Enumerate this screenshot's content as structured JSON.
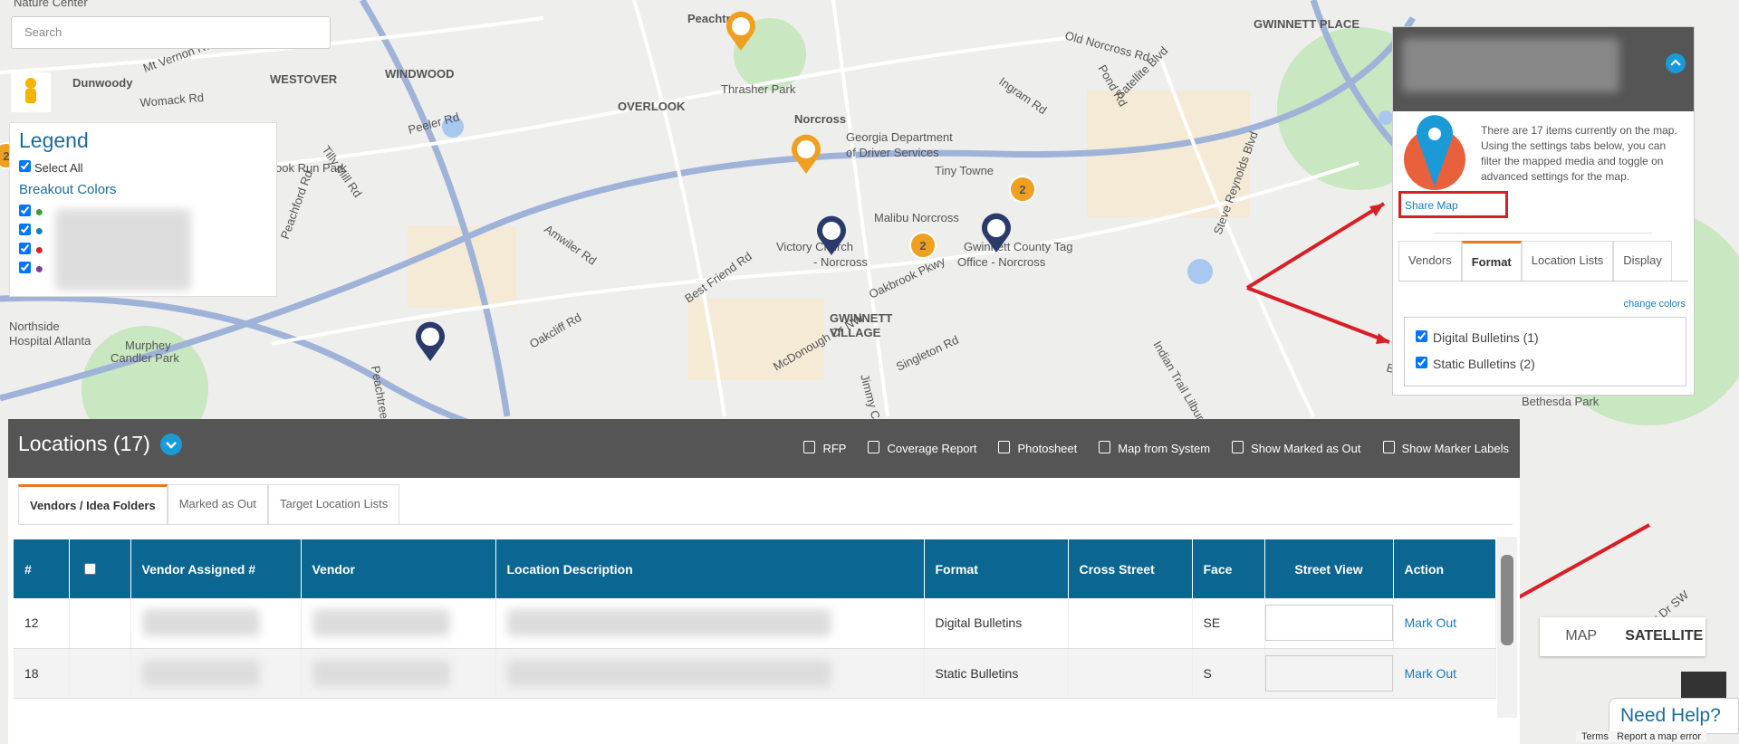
{
  "search": {
    "placeholder": "Search"
  },
  "map": {
    "labels": [
      "Nature Center",
      "Dunwoody",
      "WESTOVER",
      "WINDWOOD",
      "OVERLOOK",
      "Peachtree",
      "Thrasher Park",
      "Norcross",
      "Georgia Department",
      "of Driver Services",
      "Tiny Towne",
      "Malibu Norcross",
      "Gwinnett County Tag",
      "Office - Norcross",
      "Victory Church",
      "- Norcross",
      "GWINNETT",
      "VILLAGE",
      "GWINNETT PLACE",
      "Northside",
      "Hospital Atlanta",
      "Murphey",
      "Candler Park",
      "Bethesda Park",
      "ook Run Park",
      "Mt Vernon Rd",
      "Womack Rd",
      "Peeler Rd",
      "Tilly Mill Rd",
      "Peachford Rd",
      "Amwiler Rd",
      "Best Friend Rd",
      "Oakcliff Rd",
      "Oakbrook Pkwy",
      "Singleton Rd",
      "McDonough Dr NW",
      "Satellite Blvd",
      "Steve Reynolds Blvd",
      "Indian Trail Lilburn Rd",
      "Pond Rd",
      "Old Norcross Rd",
      "Ingram Rd",
      "Burns",
      "Jimmy Carter Blvd",
      "Peachtree Rd",
      "River Dr SW"
    ],
    "clusters": [
      "2",
      "2",
      "2"
    ]
  },
  "legend": {
    "title": "Legend",
    "select_all": "Select All",
    "breakout": "Breakout Colors"
  },
  "panel": {
    "description": "There are 17 items currently on the map. Using the settings tabs below, you can filter the mapped media and toggle on advanced settings for the map.",
    "share": "Share Map",
    "tabs": [
      "Vendors",
      "Format",
      "Location Lists",
      "Display"
    ],
    "change_colors": "change colors",
    "formats": [
      "Digital Bulletins (1)",
      "Static Bulletins (2)"
    ]
  },
  "locations": {
    "title": "Locations (17)",
    "actions": [
      "RFP",
      "Coverage Report",
      "Photosheet",
      "Map from System",
      "Show Marked as Out",
      "Show Marker Labels"
    ],
    "tabs": [
      "Vendors / Idea Folders",
      "Marked as Out",
      "Target Location Lists"
    ],
    "columns": [
      "#",
      "",
      "Vendor Assigned #",
      "Vendor",
      "Location Description",
      "Format",
      "Cross Street",
      "Face",
      "Street View",
      "Action"
    ],
    "rows": [
      {
        "number": "12",
        "format": "Digital Bulletins",
        "face": "SE",
        "action": "Mark Out"
      },
      {
        "number": "18",
        "format": "Static Bulletins",
        "face": "S",
        "action": "Mark Out"
      }
    ]
  },
  "map_type": [
    "MAP",
    "SATELLITE"
  ],
  "help": "Need Help?",
  "footer": [
    "Terms",
    "Report a map error"
  ]
}
